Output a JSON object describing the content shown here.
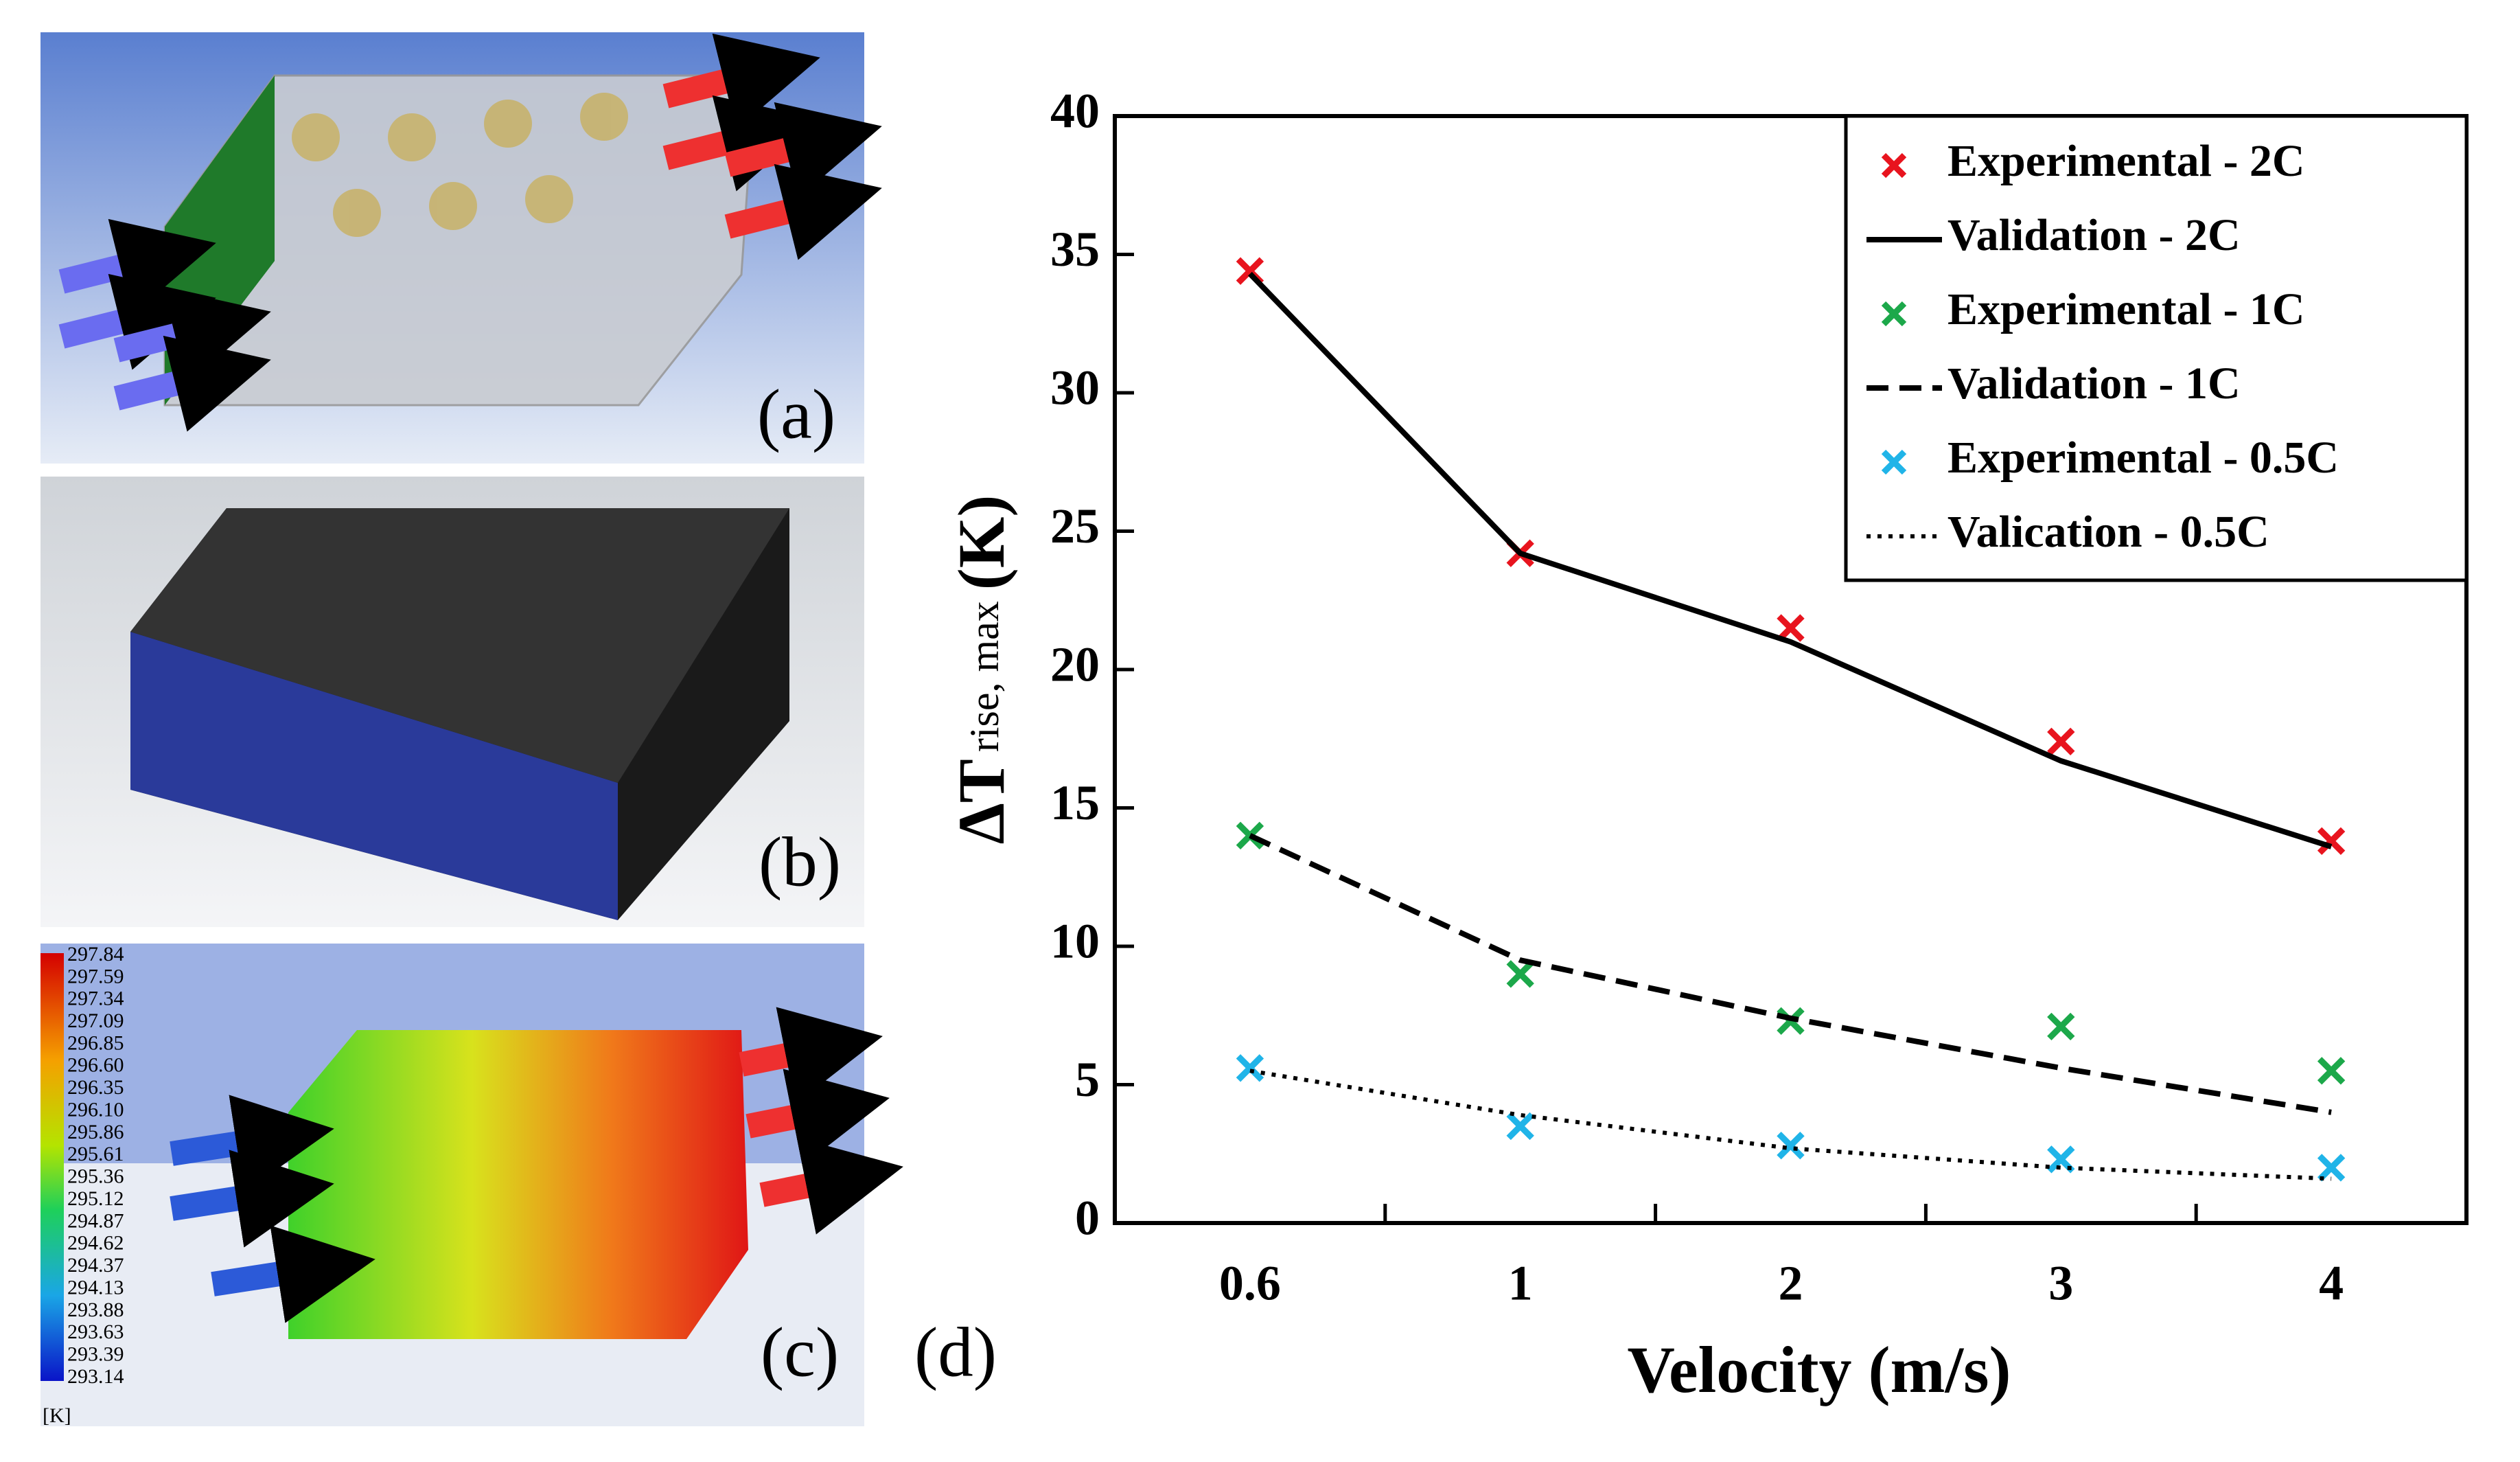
{
  "panels": {
    "a": "(a)",
    "b": "(b)",
    "c": "(c)"
  },
  "colorbar": {
    "unit": "[K]",
    "ticks": [
      297.84,
      297.59,
      297.34,
      297.09,
      296.85,
      {
        "value": 296.6,
        "label": "296.60"
      },
      296.35,
      {
        "value": 296.1,
        "label": "296.10"
      },
      295.86,
      295.61,
      295.36,
      295.12,
      294.87,
      294.62,
      294.37,
      294.13,
      293.88,
      293.63,
      293.39,
      293.14
    ]
  },
  "chart_data": {
    "type": "line",
    "panel_label": "(d)",
    "x_label": "Velocity (m/s)",
    "y_label": {
      "main": "ΔT",
      "sub": "rise, max",
      "unit": "(K)"
    },
    "categories": [
      "0.6",
      "1",
      "2",
      "3",
      "4"
    ],
    "ylim": [
      0,
      40
    ],
    "yticks": [
      0,
      5,
      10,
      15,
      20,
      25,
      30,
      35,
      40
    ],
    "legend": "upper right",
    "series": [
      {
        "name": "Experimental - 2C",
        "color": "#e8141e",
        "style": "marker",
        "values": [
          34.4,
          24.2,
          21.5,
          17.4,
          13.8
        ]
      },
      {
        "name": "Validation - 2C",
        "color": "#000000",
        "style": "solid",
        "values": [
          34.3,
          24.2,
          21.0,
          16.7,
          13.6
        ]
      },
      {
        "name": "Experimental - 1C",
        "color": "#1ca84a",
        "style": "marker",
        "values": [
          14.0,
          9.0,
          7.3,
          7.1,
          5.5
        ]
      },
      {
        "name": "Validation - 1C",
        "color": "#000000",
        "style": "dashed",
        "values": [
          14.0,
          9.5,
          7.4,
          5.6,
          4.0
        ]
      },
      {
        "name": "Experimental - 0.5C",
        "color": "#20b4e8",
        "style": "marker",
        "values": [
          5.6,
          3.5,
          2.8,
          2.3,
          2.0
        ]
      },
      {
        "name": "Valication - 0.5C",
        "color": "#000000",
        "style": "dotted",
        "values": [
          5.5,
          3.9,
          2.7,
          2.0,
          1.6
        ]
      }
    ]
  }
}
